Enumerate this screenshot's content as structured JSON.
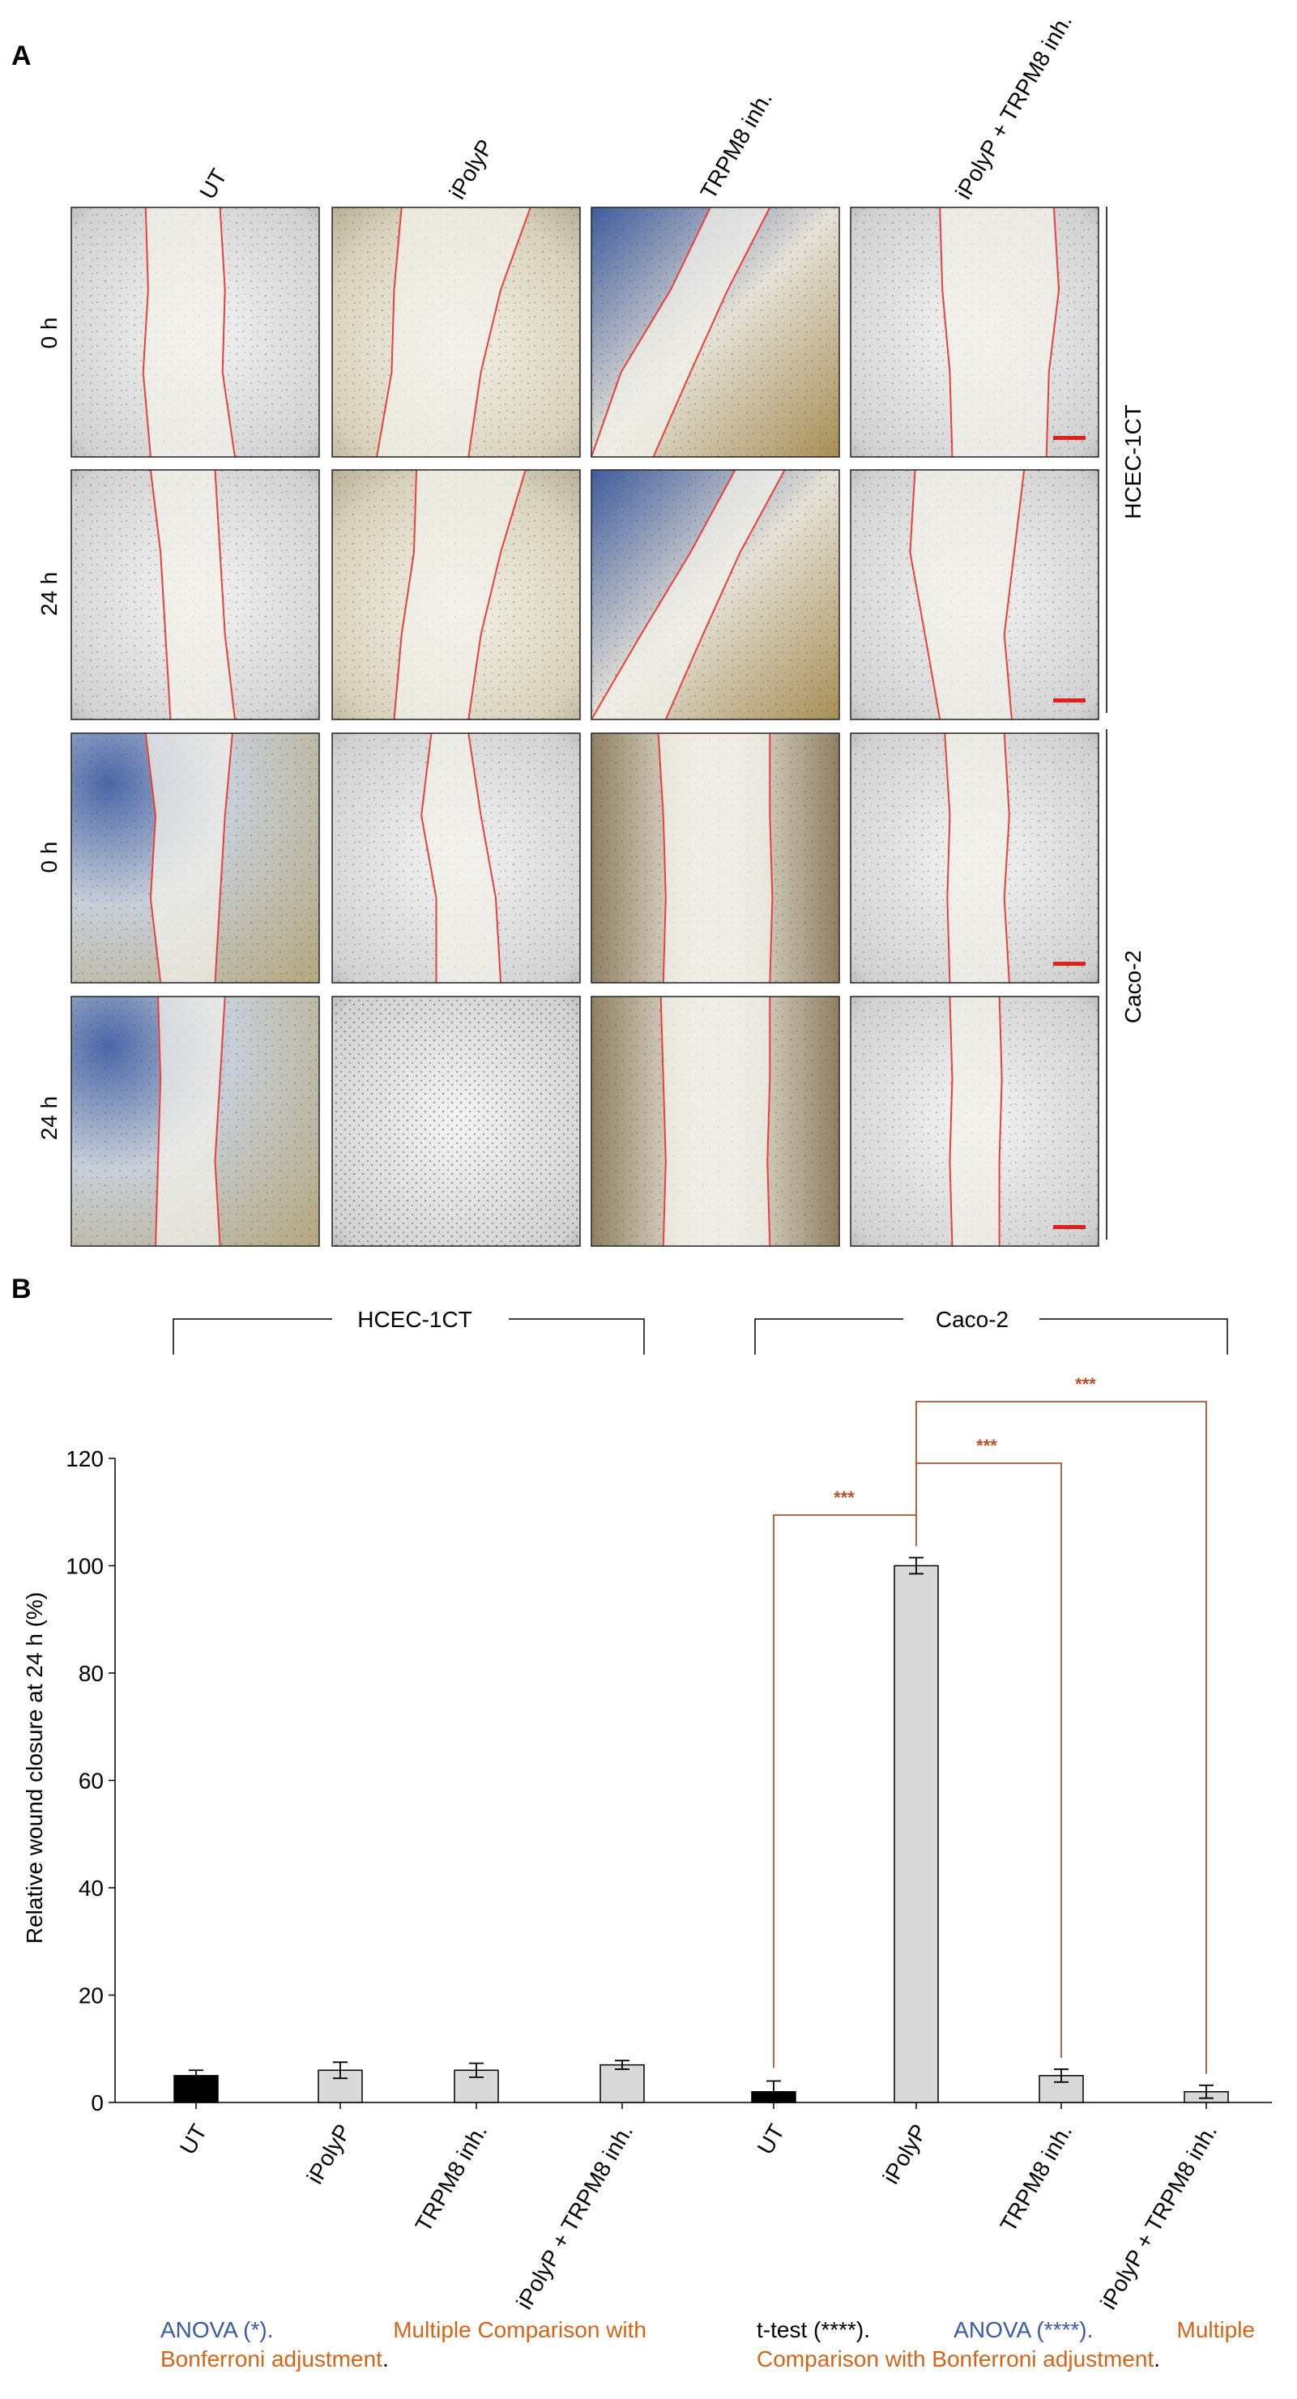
{
  "panel_a": {
    "label": "A",
    "columns": [
      "UT",
      "iPolyP",
      "TRPM8 inh.",
      "iPolyP + TRPM8 inh."
    ],
    "rows": [
      "0 h",
      "24 h",
      "0 h",
      "24 h"
    ],
    "cell_lines": [
      "HCEC-1CT",
      "Caco-2"
    ],
    "colors": {
      "wound_edge": "#e8403a",
      "scale_bar": "#e0201c"
    }
  },
  "panel_b": {
    "label": "B",
    "groups": [
      "HCEC-1CT",
      "Caco-2"
    ],
    "sig_stars": [
      "***",
      "***",
      "***"
    ],
    "footnote_left": {
      "anova": "ANOVA (*).",
      "multiple": "Multiple Comparison with",
      "bonferroni": "Bonferroni adjustment",
      "period": "."
    },
    "footnote_right": {
      "ttest": "t-test (****).",
      "anova": "ANOVA (****).",
      "multiple": "Multiple",
      "comparison": "Comparison with Bonferroni adjustment",
      "period": "."
    }
  },
  "chart_data": {
    "type": "bar",
    "ylabel": "Relative wound closure at 24 h (%)",
    "ylim": [
      0,
      120
    ],
    "yticks": [
      0,
      20,
      40,
      60,
      80,
      100,
      120
    ],
    "categories": [
      "UT",
      "iPolyP",
      "TRPM8 inh.",
      "iPolyP + TRPM8 inh.",
      "UT",
      "iPolyP",
      "TRPM8 inh.",
      "iPolyP + TRPM8 inh."
    ],
    "values": [
      5,
      6,
      6,
      7,
      2,
      100,
      5,
      2
    ],
    "errors": [
      1,
      1.5,
      1.3,
      0.8,
      2,
      1.5,
      1.2,
      1.2
    ],
    "colors": [
      "#000000",
      "#d9d9d9",
      "#d9d9d9",
      "#d9d9d9",
      "#000000",
      "#d9d9d9",
      "#d9d9d9",
      "#d9d9d9"
    ],
    "bracket_color": "#b5522a"
  }
}
